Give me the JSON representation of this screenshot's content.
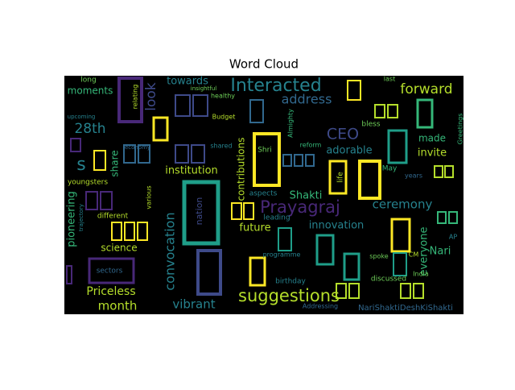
{
  "chart_data": {
    "type": "wordcloud",
    "title": "Word Cloud",
    "words": [
      {
        "text": "Interacted",
        "color": "#26828e"
      },
      {
        "text": "forward",
        "color": "#b5de2b"
      },
      {
        "text": "address",
        "color": "#31688e"
      },
      {
        "text": "towards",
        "color": "#26828e"
      },
      {
        "text": "look",
        "color": "#3e4a89"
      },
      {
        "text": "moments",
        "color": "#35b779"
      },
      {
        "text": "long",
        "color": "#6ece58"
      },
      {
        "text": "relating",
        "color": "#b5de2b"
      },
      {
        "text": "insightful",
        "color": "#6ece58"
      },
      {
        "text": "healthy",
        "color": "#6ece58"
      },
      {
        "text": "last",
        "color": "#6ece58"
      },
      {
        "text": "upcoming",
        "color": "#26828e"
      },
      {
        "text": "Budget",
        "color": "#b5de2b"
      },
      {
        "text": "Almighty",
        "color": "#35b779"
      },
      {
        "text": "bless",
        "color": "#6ece58"
      },
      {
        "text": "Greetings",
        "color": "#35b779"
      },
      {
        "text": "CEO",
        "color": "#3e4a89"
      },
      {
        "text": "28th",
        "color": "#26828e"
      },
      {
        "text": "made",
        "color": "#35b779"
      },
      {
        "text": "adorable",
        "color": "#26828e"
      },
      {
        "text": "invite",
        "color": "#b5de2b"
      },
      {
        "text": "s",
        "color": "#26828e"
      },
      {
        "text": "share",
        "color": "#35b779"
      },
      {
        "text": "economy",
        "color": "#31688e"
      },
      {
        "text": "shared",
        "color": "#26828e"
      },
      {
        "text": "reform",
        "color": "#35b779"
      },
      {
        "text": "Shri",
        "color": "#6ece58"
      },
      {
        "text": "institution",
        "color": "#b5de2b"
      },
      {
        "text": "contributions",
        "color": "#b5de2b"
      },
      {
        "text": "youngsters",
        "color": "#b5de2b"
      },
      {
        "text": "various",
        "color": "#b5de2b"
      },
      {
        "text": "aspects",
        "color": "#26828e"
      },
      {
        "text": "Shakti",
        "color": "#35b779"
      },
      {
        "text": "Prayagraj",
        "color": "#482878"
      },
      {
        "text": "ceremony",
        "color": "#26828e"
      },
      {
        "text": "nation",
        "color": "#3e4a89"
      },
      {
        "text": "life",
        "color": "#b5de2b"
      },
      {
        "text": "May",
        "color": "#35b779"
      },
      {
        "text": "years",
        "color": "#31688e"
      },
      {
        "text": "different",
        "color": "#b5de2b"
      },
      {
        "text": "leading",
        "color": "#26828e"
      },
      {
        "text": "future",
        "color": "#b5de2b"
      },
      {
        "text": "innovation",
        "color": "#26828e"
      },
      {
        "text": "pioneering",
        "color": "#35b779"
      },
      {
        "text": "trajectory",
        "color": "#26828e"
      },
      {
        "text": "science",
        "color": "#b5de2b"
      },
      {
        "text": "convocation",
        "color": "#26828e"
      },
      {
        "text": "everyone",
        "color": "#35b779"
      },
      {
        "text": "AP",
        "color": "#26828e"
      },
      {
        "text": "Nari",
        "color": "#35b779"
      },
      {
        "text": "spoke",
        "color": "#6ece58"
      },
      {
        "text": "programme",
        "color": "#26828e"
      },
      {
        "text": "CM",
        "color": "#b5de2b"
      },
      {
        "text": "sectors",
        "color": "#31688e"
      },
      {
        "text": "India",
        "color": "#6ece58"
      },
      {
        "text": "birthday",
        "color": "#26828e"
      },
      {
        "text": "discussed",
        "color": "#6ece58"
      },
      {
        "text": "Priceless",
        "color": "#b5de2b"
      },
      {
        "text": "suggestions",
        "color": "#b5de2b"
      },
      {
        "text": "month",
        "color": "#b5de2b"
      },
      {
        "text": "vibrant",
        "color": "#26828e"
      },
      {
        "text": "Addressing",
        "color": "#31688e"
      },
      {
        "text": "NariShaktiDeshKiShakti",
        "color": "#31688e"
      }
    ]
  }
}
